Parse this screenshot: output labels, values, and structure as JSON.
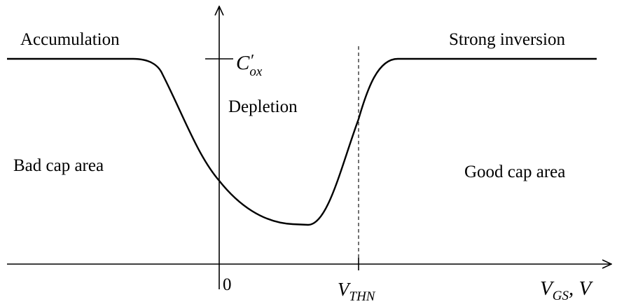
{
  "labels": {
    "accumulation": "Accumulation",
    "strong_inversion": "Strong inversion",
    "depletion": "Depletion",
    "bad_cap": "Bad cap area",
    "good_cap": "Good cap area",
    "origin": "0",
    "cox_main": "C",
    "cox_prime": "′",
    "cox_sub": "ox",
    "vthn_main": "V",
    "vthn_sub": "THN",
    "xaxis_main": "V",
    "xaxis_sub": "GS",
    "xaxis_unit": ", V"
  },
  "colors": {
    "line": "#000000",
    "background": "#ffffff"
  }
}
